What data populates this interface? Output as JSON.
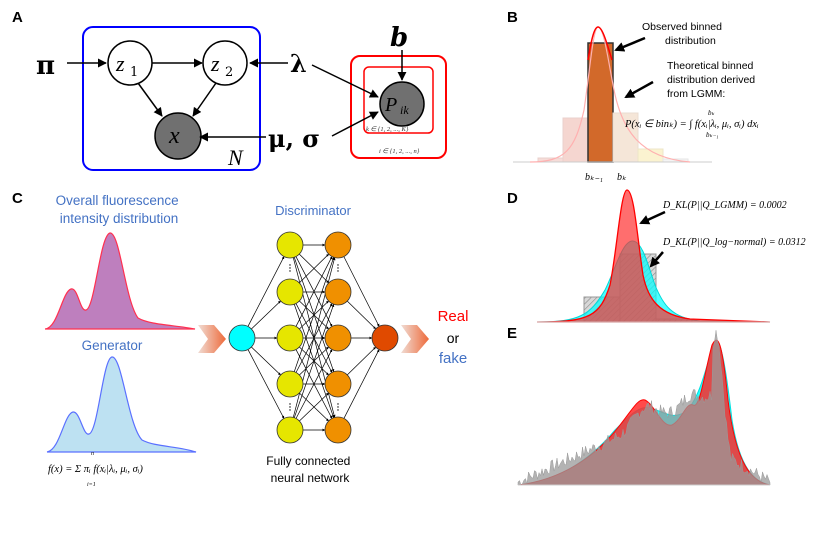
{
  "panels": {
    "a": {
      "label": "A",
      "pi": "π",
      "z1": "z",
      "z1_sub": "1",
      "z2": "z",
      "z2_sub": "2",
      "x": "x",
      "lambda": "λ",
      "mu_sigma": "μ, σ",
      "N": "N",
      "b": "b",
      "P": "P",
      "P_sub": "ik",
      "k_range": "k ∈ {1, 2, ..., K}",
      "i_range": "i ∈ {1, 2, ..., n}",
      "colors": {
        "plate_n": "#0000ff",
        "plate_bins": "#ff0000",
        "observed_node": "#707070"
      }
    },
    "b": {
      "label": "B",
      "observed_text": [
        "Observed binned",
        "distribution"
      ],
      "theoretical_text": [
        "Theoretical binned",
        "distribution derived",
        "from LGMM:"
      ],
      "formula": "P(xᵢ ∈ binₖ) = ∫ f(xᵢ|λᵢ, μᵢ, σᵢ) dxᵢ",
      "integral_upper": "bₖ",
      "integral_lower": "bₖ₋₁",
      "tick_left": "bₖ₋₁",
      "tick_right": "bₖ"
    },
    "c": {
      "label": "C",
      "real_title": [
        "Overall fluorescence",
        "intensity distribution"
      ],
      "generator_title": "Generator",
      "generator_formula": "f(x) = Σ πᵢ f(xᵢ|λᵢ, μᵢ, σᵢ)",
      "sum_upper": "n",
      "sum_lower": "i=1",
      "discriminator_title": "Discriminator",
      "network_caption": [
        "Fully connected",
        "neural network"
      ],
      "output_real": "Real",
      "output_or": "or",
      "output_fake": "fake",
      "colors": {
        "real": "#ff0000",
        "fake": "#4472c4",
        "title": "#4472c4",
        "input_node": "#00ffff",
        "hidden1": "#e6e600",
        "hidden2": "#f09000",
        "output_node": "#e04a00"
      }
    },
    "d": {
      "label": "D",
      "kl_lgmm": "D_KL(P||Q_LGMM) = 0.0002",
      "kl_lognormal": "D_KL(P||Q_log−normal) = 0.0312"
    },
    "e": {
      "label": "E"
    }
  }
}
